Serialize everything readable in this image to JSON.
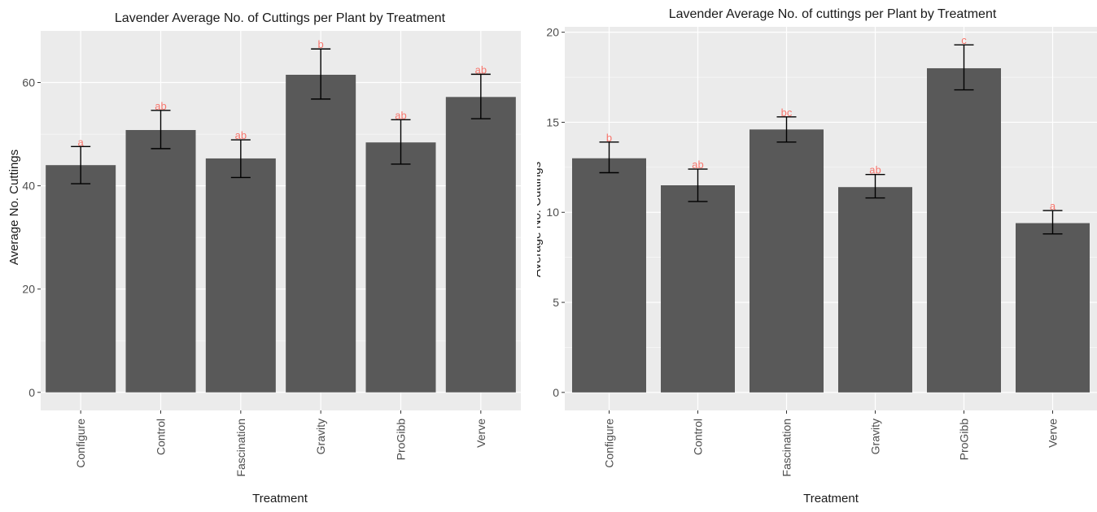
{
  "chart_data": [
    {
      "type": "bar",
      "title": "Lavender Average No. of Cuttings per Plant by Treatment",
      "xlabel": "Treatment",
      "ylabel": "Average No. Cuttings",
      "ylim": [
        -3.5,
        70
      ],
      "yticks": [
        0,
        20,
        40,
        60
      ],
      "grid": true,
      "categories": [
        "Configure",
        "Control",
        "Fascination",
        "Gravity",
        "ProGibb",
        "Verve"
      ],
      "values": [
        44.0,
        50.8,
        45.3,
        61.5,
        48.4,
        57.2
      ],
      "error_low": [
        40.4,
        47.2,
        41.6,
        56.8,
        44.2,
        53.0
      ],
      "error_high": [
        47.6,
        54.6,
        48.9,
        66.5,
        52.8,
        61.6
      ],
      "letters": [
        "a",
        "ab",
        "ab",
        "b",
        "ab",
        "ab"
      ],
      "colors": {
        "bar": "#595959",
        "panel": "#ebebeb",
        "grid": "#ffffff",
        "letters": "#f8766d"
      }
    },
    {
      "type": "bar",
      "title": "Lavender Average No. of cuttings per Plant by Treatment",
      "xlabel": "Treatment",
      "ylabel": "Average No. Cuttings",
      "ylim": [
        -1.0,
        20.3
      ],
      "yticks": [
        0,
        5,
        10,
        15,
        20
      ],
      "grid": true,
      "categories": [
        "Configure",
        "Control",
        "Fascination",
        "Gravity",
        "ProGibb",
        "Verve"
      ],
      "values": [
        13.0,
        11.5,
        14.6,
        11.4,
        18.0,
        9.4
      ],
      "error_low": [
        12.2,
        10.6,
        13.9,
        10.8,
        16.8,
        8.8
      ],
      "error_high": [
        13.9,
        12.4,
        15.3,
        12.1,
        19.3,
        10.1
      ],
      "letters": [
        "b",
        "ab",
        "bc",
        "ab",
        "c",
        "a"
      ],
      "colors": {
        "bar": "#595959",
        "panel": "#ebebeb",
        "grid": "#ffffff",
        "letters": "#f8766d"
      }
    }
  ]
}
